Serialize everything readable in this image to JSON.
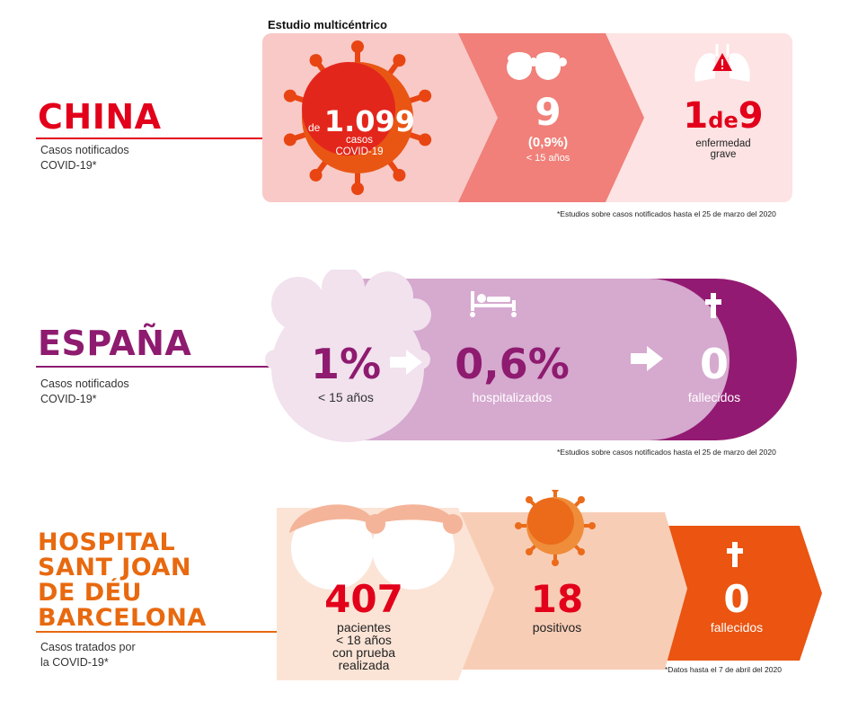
{
  "china": {
    "title": "CHINA",
    "subtitle_line1": "Casos notificados",
    "subtitle_line2": "COVID-19*",
    "study_label": "Estudio multicéntrico",
    "cases_prefix": "de",
    "cases_value": "1.099",
    "cases_line1": "casos",
    "cases_line2": "COVID-19",
    "children_value": "9",
    "children_percent": "(0,9%)",
    "children_label": "< 15 años",
    "severe_ratio_1": "1",
    "severe_ratio_de": "de",
    "severe_ratio_9": "9",
    "severe_line1": "enfermedad",
    "severe_line2": "grave",
    "footnote": "*Estudios sobre casos notificados hasta el 25 de marzo del 2020",
    "color": "#e2001a"
  },
  "spain": {
    "title": "ESPAÑA",
    "subtitle_line1": "Casos notificados",
    "subtitle_line2": "COVID-19*",
    "children_value": "1%",
    "children_label": "< 15 años",
    "hospital_value": "0,6%",
    "hospital_label": "hospitalizados",
    "deaths_value": "0",
    "deaths_label": "fallecidos",
    "footnote": "*Estudios sobre casos notificados hasta el 25 de marzo del 2020",
    "color": "#8e1b6f"
  },
  "hospital": {
    "title_line1": "HOSPITAL",
    "title_line2": "SANT JOAN",
    "title_line3": "DE DÉU",
    "title_line4": "BARCELONA",
    "subtitle_line1": "Casos tratados por",
    "subtitle_line2": "la COVID-19*",
    "patients_value": "407",
    "patients_line1": "pacientes",
    "patients_line2": "< 18 años",
    "patients_line3": "con prueba",
    "patients_line4": "realizada",
    "positive_value": "18",
    "positive_label": "positivos",
    "deaths_value": "0",
    "deaths_label": "fallecidos",
    "footnote": "*Datos hasta el 7 de abril del 2020",
    "color": "#e8690f"
  },
  "icons": [
    "virus-icon",
    "children-icon",
    "lungs-warning-icon",
    "hospital-bed-icon",
    "cross-icon",
    "arrow-icon"
  ]
}
